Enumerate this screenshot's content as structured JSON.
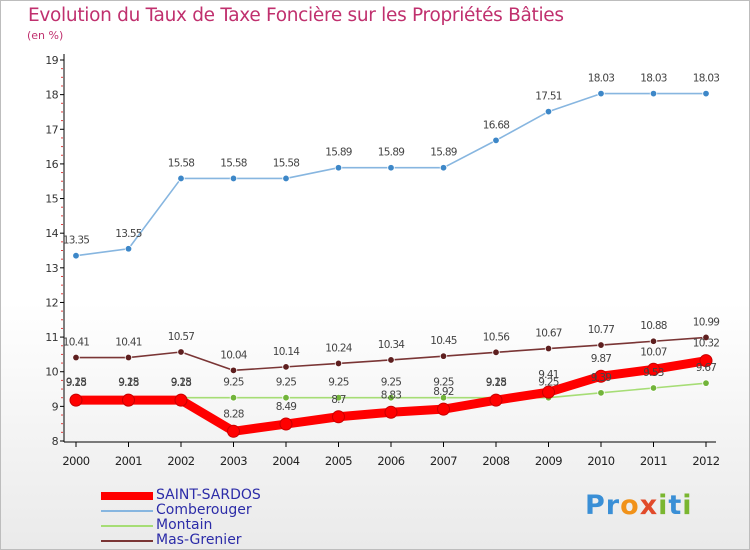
{
  "title": "Evolution du Taux de Taxe Foncière sur les Propriétés Bâties",
  "unit": "(en %)",
  "logo": [
    "P",
    "r",
    "o",
    "x",
    "i",
    "t",
    "i"
  ],
  "colors": {
    "title": "#c0306e",
    "axis": "#000000",
    "legend_text": "#2c2ca8",
    "logo": [
      "#3a8fd6",
      "#3a8fd6",
      "#f19219",
      "#e14a2a",
      "#7ab630",
      "#3a8fd6",
      "#7ab630"
    ]
  },
  "chart_data": {
    "type": "line",
    "title": "Evolution du Taux de Taxe Foncière sur les Propriétés Bâties",
    "ylabel": "(en %)",
    "xlabel": "",
    "x": [
      "2000",
      "2001",
      "2002",
      "2003",
      "2004",
      "2005",
      "2006",
      "2007",
      "2008",
      "2009",
      "2010",
      "2011",
      "2012"
    ],
    "ylim": [
      8,
      19
    ],
    "yticks": [
      "8",
      "9",
      "10",
      "11",
      "12",
      "13",
      "14",
      "15",
      "16",
      "17",
      "18",
      "19"
    ],
    "grid": false,
    "legend_position": "bottom-left",
    "series": [
      {
        "name": "SAINT-SARDOS",
        "color": "#ff0000",
        "weight": "thick",
        "values": [
          9.18,
          9.18,
          9.18,
          8.28,
          8.49,
          8.7,
          8.83,
          8.92,
          9.18,
          9.41,
          9.87,
          10.07,
          10.32
        ],
        "labels": [
          "9.18",
          "9.18",
          "9.18",
          "8.28",
          "8.49",
          "8.7",
          "8.83",
          "8.92",
          "9.18",
          "9.41",
          "9.87",
          "10.07",
          "10.32"
        ]
      },
      {
        "name": "Comberouger",
        "color": "#87b6e0",
        "marker": "#3d87c8",
        "weight": "thin",
        "values": [
          13.35,
          13.55,
          15.58,
          15.58,
          15.58,
          15.89,
          15.89,
          15.89,
          16.68,
          17.51,
          18.03,
          18.03,
          18.03
        ],
        "labels": [
          "13.35",
          "13.55",
          "15.58",
          "15.58",
          "15.58",
          "15.89",
          "15.89",
          "15.89",
          "16.68",
          "17.51",
          "18.03",
          "18.03",
          "18.03"
        ]
      },
      {
        "name": "Montain",
        "color": "#a6dd75",
        "marker": "#72b43a",
        "weight": "thin",
        "values": [
          9.25,
          9.25,
          9.25,
          9.25,
          9.25,
          9.25,
          9.25,
          9.25,
          9.25,
          9.25,
          9.39,
          9.53,
          9.67
        ],
        "labels": [
          "9.25",
          "9.25",
          "9.25",
          "9.25",
          "9.25",
          "9.25",
          "9.25",
          "9.25",
          "9.25",
          "9.25",
          "9.39",
          "9.53",
          "9.67"
        ]
      },
      {
        "name": "Mas-Grenier",
        "color": "#7a3535",
        "marker": "#5e1f1f",
        "weight": "thin",
        "values": [
          10.41,
          10.41,
          10.57,
          10.04,
          10.14,
          10.24,
          10.34,
          10.45,
          10.56,
          10.67,
          10.77,
          10.88,
          10.99
        ],
        "labels": [
          "10.41",
          "10.41",
          "10.57",
          "10.04",
          "10.14",
          "10.24",
          "10.34",
          "10.45",
          "10.56",
          "10.67",
          "10.77",
          "10.88",
          "10.99"
        ]
      }
    ]
  }
}
